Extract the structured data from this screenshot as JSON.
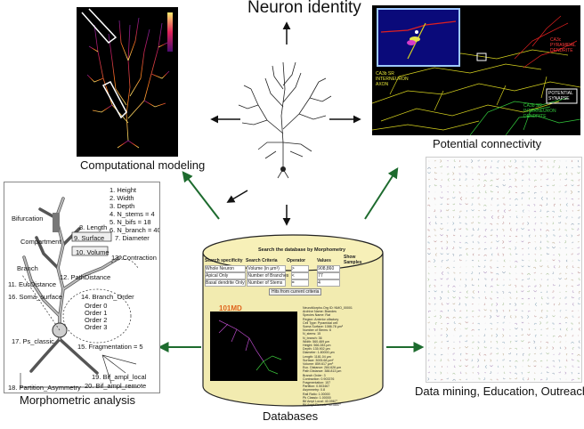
{
  "title": "Neuron identity",
  "captions": {
    "computational": "Computational modeling",
    "connectivity": "Potential connectivity",
    "morphometric": "Morphometric analysis",
    "databases": "Databases",
    "datamining": "Data mining, Education, Outreach"
  },
  "connectivity_labels": {
    "pyramidal": "CA3c\nPYRAMIDAL\nDENDRITE",
    "interneuron_axon": "CA3b SR\nINTERNEURON\nAXON",
    "interneuron_dendrite": "CA3b SR\nINTERNEURON\nDENDRITE",
    "synapse": "POTENTIAL\nSYNAPSE"
  },
  "morphometrics": {
    "list": [
      "1. Height",
      "2. Width",
      "3. Depth",
      "4. N_stems = 4",
      "5. N_bifs    = 18",
      "6. N_branch = 40"
    ],
    "labels": {
      "bifurcation": "Bifurcation",
      "length": "8. Length",
      "compartment": "Compartment",
      "surface": "9. Surface",
      "diameter": "7. Diameter",
      "volume": "10. Volume",
      "branch": "Branch",
      "contraction": "13. Contraction",
      "eucdistance": "11. EucDistance",
      "pathdistance": "12. PathDistance",
      "soma_surface": "16. Soma_surface",
      "branch_order": "14. Branch_Order",
      "order0": "Order 0",
      "order1": "Order 1",
      "order2": "Order 2",
      "order3": "Order 3",
      "ps_classic": "17. Ps_classic",
      "fragmentation": "15. Fragmentation = 5",
      "partition": "18. Partition_Asymmetry",
      "bif_local": "19. Bif_ampl_local",
      "bif_remote": "20. Bif_ampl_remote"
    }
  },
  "database": {
    "header": "Search the database by Morphometry",
    "columns": [
      "Search specificity",
      "Search Criteria",
      "Operator",
      "Values",
      "Show Samples"
    ],
    "rows": [
      {
        "spec": "Whole Neuron",
        "crit": "Volume (in µm³)",
        "op": ">",
        "val": "908,860"
      },
      {
        "spec": "Apical Only",
        "crit": "Number of Branches",
        "op": "<",
        "val": "77"
      },
      {
        "spec": "Basal dendrite Only",
        "crit": "Number of Stems",
        "op": "=",
        "val": "4"
      }
    ],
    "button": "Hits from current criteria",
    "neuron_id": "101MD",
    "details": [
      "NeuroMorpho.Org ID:  NMO_00001",
      "Archive Name:  Brandes",
      "Species Name:  Rat",
      "Region:  Anterior olfactory",
      "Cell Type:  Pyramidal cell",
      "Soma Surface:  1086.78 µm²",
      "Number of Stems:  6",
      "N_stems:  15",
      "N_branch:  36",
      "Width:  560.469 µm",
      "Height:  566.283 µm",
      "Depth:  135.902 µm",
      "Diameter:  1.80000 µm",
      "Length:  1181.04 µm",
      "Surface:  3005.68 µm²",
      "Volume:  859.617 µm³",
      "Euc. Distance:  284.626 µm",
      "Path Distance:  388.813 µm",
      "Branch Order:  3",
      "Contraction:  0.903376",
      "Fragmentation:  157",
      "Partition:  0.503467",
      "Asymmetry:  0.8",
      "Rall Ratio:  1.00000",
      "Pk Classic:  1.00000",
      "Bif Ampl Local:  40.0967°",
      "Bif Ampl Remote:  40.3857°"
    ]
  }
}
